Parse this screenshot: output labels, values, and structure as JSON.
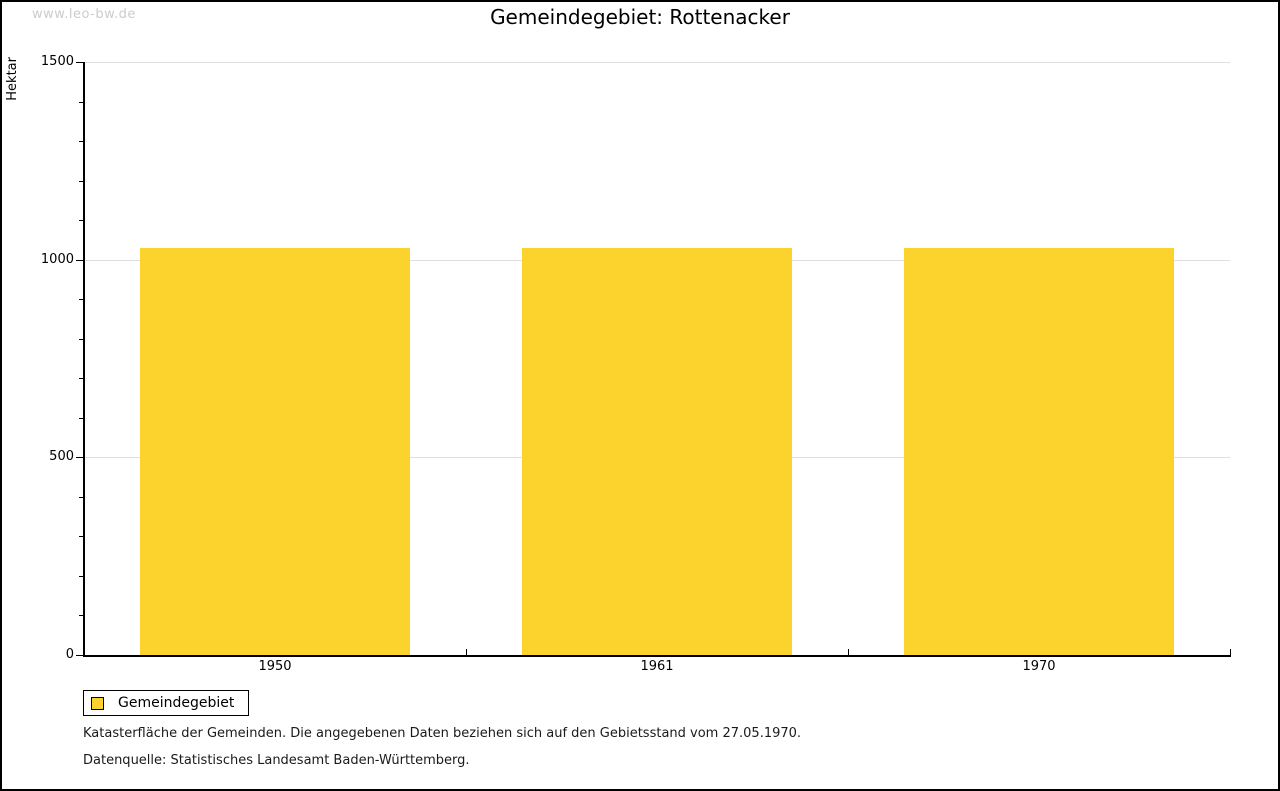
{
  "watermark": "www.leo-bw.de",
  "header": {
    "title": "Gemeindegebiet: Rottenacker"
  },
  "chart_data": {
    "type": "bar",
    "title": "Gemeindegebiet: Rottenacker",
    "categories": [
      "1950",
      "1961",
      "1970"
    ],
    "series": [
      {
        "name": "Gemeindegebiet",
        "color": "#FCD32D",
        "values": [
          1030,
          1030,
          1030
        ]
      }
    ],
    "xlabel": "",
    "ylabel": "Hektar",
    "ylim": [
      0,
      1500
    ],
    "yticks_major": [
      0,
      500,
      1000,
      1500
    ],
    "ytick_minor_step": 100,
    "grid": "horizontal-major",
    "legend_position": "bottom-left",
    "bar_unit": "Hektar"
  },
  "legend": {
    "items": [
      {
        "label": "Gemeindegebiet",
        "color": "#FCD32D"
      }
    ]
  },
  "footnotes": {
    "line1": "Katasterfläche der Gemeinden. Die angegebenen Daten beziehen sich auf den Gebietsstand vom 27.05.1970.",
    "line2": "Datenquelle: Statistisches Landesamt Baden-Württemberg."
  },
  "colors": {
    "bar": "#FCD32D",
    "grid": "#dedede",
    "axis": "#000000",
    "watermark": "#cccccc"
  }
}
